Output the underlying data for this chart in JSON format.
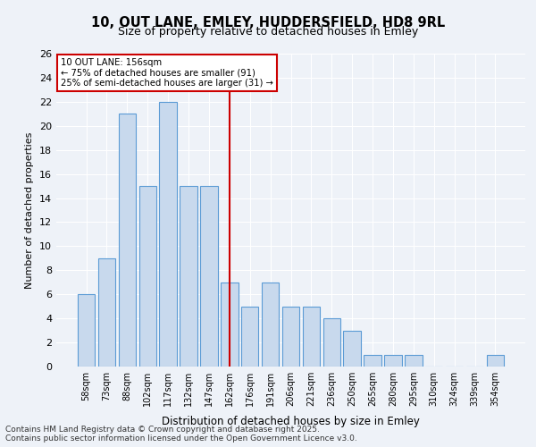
{
  "title1": "10, OUT LANE, EMLEY, HUDDERSFIELD, HD8 9RL",
  "title2": "Size of property relative to detached houses in Emley",
  "xlabel": "Distribution of detached houses by size in Emley",
  "ylabel": "Number of detached properties",
  "categories": [
    "58sqm",
    "73sqm",
    "88sqm",
    "102sqm",
    "117sqm",
    "132sqm",
    "147sqm",
    "162sqm",
    "176sqm",
    "191sqm",
    "206sqm",
    "221sqm",
    "236sqm",
    "250sqm",
    "265sqm",
    "280sqm",
    "295sqm",
    "310sqm",
    "324sqm",
    "339sqm",
    "354sqm"
  ],
  "values": [
    6,
    9,
    21,
    15,
    22,
    15,
    15,
    7,
    5,
    7,
    5,
    5,
    4,
    3,
    1,
    1,
    1,
    0,
    0,
    0,
    1
  ],
  "bar_color": "#c8d9ed",
  "bar_edge_color": "#5b9bd5",
  "vline_x_index": 7,
  "vline_color": "#cc0000",
  "annotation_text": "10 OUT LANE: 156sqm\n← 75% of detached houses are smaller (91)\n25% of semi-detached houses are larger (31) →",
  "annotation_box_color": "#cc0000",
  "ylim": [
    0,
    26
  ],
  "yticks": [
    0,
    2,
    4,
    6,
    8,
    10,
    12,
    14,
    16,
    18,
    20,
    22,
    24,
    26
  ],
  "background_color": "#eef2f8",
  "grid_color": "#ffffff",
  "footer": "Contains HM Land Registry data © Crown copyright and database right 2025.\nContains public sector information licensed under the Open Government Licence v3.0."
}
